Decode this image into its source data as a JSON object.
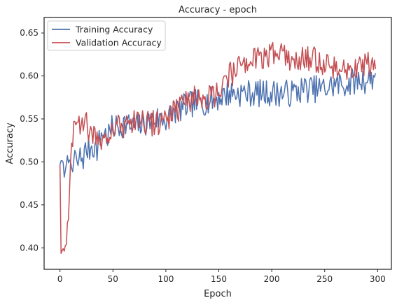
{
  "chart_data": {
    "type": "line",
    "title": "Accuracy - epoch",
    "xlabel": "Epoch",
    "ylabel": "Accuracy",
    "xlim": [
      -15,
      313
    ],
    "ylim": [
      0.375,
      0.668
    ],
    "xticks": [
      0,
      50,
      100,
      150,
      200,
      250,
      300
    ],
    "yticks": [
      0.4,
      0.45,
      0.5,
      0.55,
      0.6,
      0.65
    ],
    "grid": false,
    "legend_position": "top-left",
    "series": [
      {
        "name": "Training Accuracy",
        "color": "#4c72b0",
        "anchors": [
          [
            0,
            0.5
          ],
          [
            1,
            0.496
          ],
          [
            2,
            0.5
          ],
          [
            4,
            0.488
          ],
          [
            5,
            0.485
          ],
          [
            7,
            0.513
          ],
          [
            9,
            0.496
          ],
          [
            12,
            0.49
          ],
          [
            14,
            0.51
          ],
          [
            16,
            0.492
          ],
          [
            18,
            0.505
          ],
          [
            22,
            0.505
          ],
          [
            25,
            0.515
          ],
          [
            28,
            0.515
          ],
          [
            30,
            0.52
          ],
          [
            35,
            0.515
          ],
          [
            40,
            0.535
          ],
          [
            45,
            0.53
          ],
          [
            50,
            0.54
          ],
          [
            55,
            0.54
          ],
          [
            60,
            0.545
          ],
          [
            70,
            0.54
          ],
          [
            80,
            0.545
          ],
          [
            90,
            0.55
          ],
          [
            100,
            0.55
          ],
          [
            110,
            0.56
          ],
          [
            120,
            0.565
          ],
          [
            130,
            0.57
          ],
          [
            140,
            0.57
          ],
          [
            150,
            0.575
          ],
          [
            160,
            0.58
          ],
          [
            170,
            0.58
          ],
          [
            180,
            0.58
          ],
          [
            190,
            0.58
          ],
          [
            200,
            0.58
          ],
          [
            210,
            0.58
          ],
          [
            220,
            0.58
          ],
          [
            230,
            0.585
          ],
          [
            240,
            0.585
          ],
          [
            250,
            0.585
          ],
          [
            260,
            0.59
          ],
          [
            270,
            0.59
          ],
          [
            280,
            0.595
          ],
          [
            290,
            0.595
          ],
          [
            298,
            0.6
          ]
        ],
        "noise_amp": 0.016
      },
      {
        "name": "Validation Accuracy",
        "color": "#c44e52",
        "anchors": [
          [
            0,
            0.495
          ],
          [
            1,
            0.39
          ],
          [
            2,
            0.4
          ],
          [
            4,
            0.4
          ],
          [
            6,
            0.41
          ],
          [
            7,
            0.434
          ],
          [
            8,
            0.434
          ],
          [
            9,
            0.47
          ],
          [
            10,
            0.5
          ],
          [
            11,
            0.525
          ],
          [
            13,
            0.54
          ],
          [
            15,
            0.53
          ],
          [
            18,
            0.54
          ],
          [
            20,
            0.545
          ],
          [
            22,
            0.55
          ],
          [
            25,
            0.545
          ],
          [
            28,
            0.535
          ],
          [
            30,
            0.53
          ],
          [
            35,
            0.525
          ],
          [
            40,
            0.53
          ],
          [
            45,
            0.535
          ],
          [
            50,
            0.54
          ],
          [
            60,
            0.54
          ],
          [
            70,
            0.545
          ],
          [
            80,
            0.545
          ],
          [
            90,
            0.545
          ],
          [
            100,
            0.55
          ],
          [
            110,
            0.56
          ],
          [
            120,
            0.57
          ],
          [
            130,
            0.575
          ],
          [
            140,
            0.575
          ],
          [
            150,
            0.58
          ],
          [
            160,
            0.6
          ],
          [
            170,
            0.61
          ],
          [
            180,
            0.62
          ],
          [
            190,
            0.62
          ],
          [
            200,
            0.625
          ],
          [
            210,
            0.625
          ],
          [
            220,
            0.62
          ],
          [
            230,
            0.62
          ],
          [
            240,
            0.62
          ],
          [
            250,
            0.615
          ],
          [
            260,
            0.61
          ],
          [
            270,
            0.605
          ],
          [
            280,
            0.61
          ],
          [
            290,
            0.615
          ],
          [
            298,
            0.61
          ]
        ],
        "noise_amp": 0.015
      }
    ]
  }
}
